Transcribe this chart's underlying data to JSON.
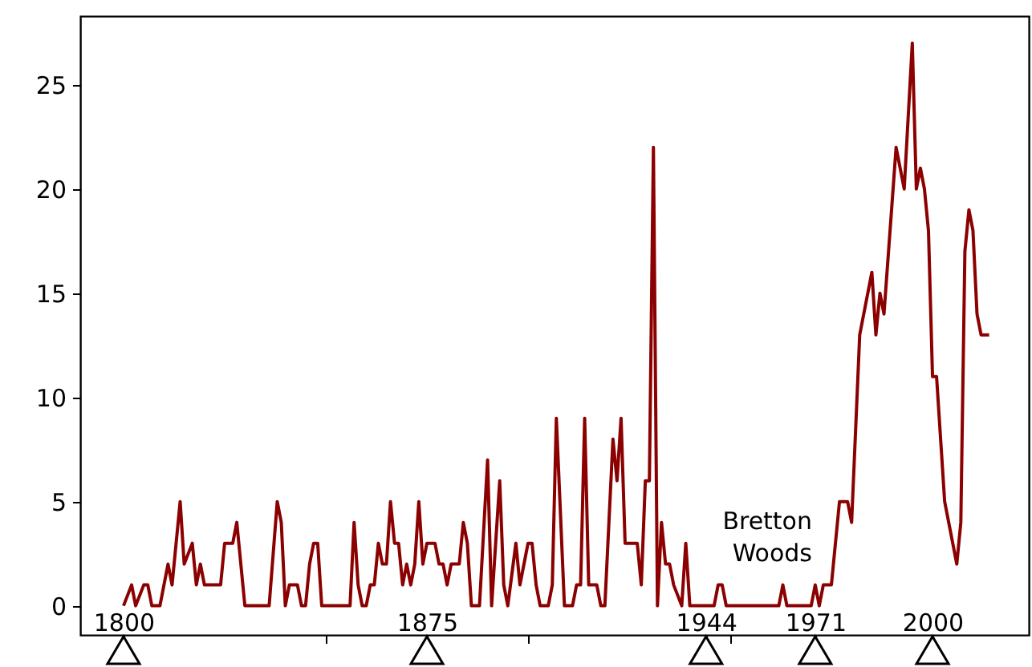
{
  "chart_data": {
    "type": "line",
    "xlim": [
      1789.3,
      2023.8
    ],
    "ylim": [
      -1.4,
      28.3
    ],
    "xticks": [
      1800,
      {
        "value": 1850,
        "label": null
      },
      1875,
      {
        "value": 1900,
        "label": null
      },
      1944,
      {
        "value": 1950,
        "label": null
      },
      1971,
      2000
    ],
    "yticks": [
      0,
      5,
      10,
      15,
      20,
      25
    ],
    "grid": false,
    "series": [
      {
        "color": "#8b0000",
        "x": [
          1800,
          1802,
          1803,
          1805,
          1806,
          1807,
          1809,
          1811,
          1812,
          1814,
          1815,
          1817,
          1818,
          1819,
          1820,
          1824,
          1825,
          1827,
          1828,
          1830,
          1836,
          1838,
          1839,
          1840,
          1841,
          1843,
          1844,
          1845,
          1846,
          1847,
          1848,
          1849,
          1856,
          1857,
          1858,
          1859,
          1860,
          1861,
          1862,
          1863,
          1864,
          1865,
          1866,
          1867,
          1868,
          1869,
          1870,
          1871,
          1872,
          1873,
          1874,
          1875,
          1877,
          1878,
          1879,
          1880,
          1881,
          1883,
          1884,
          1885,
          1886,
          1888,
          1890,
          1891,
          1893,
          1894,
          1895,
          1897,
          1898,
          1900,
          1901,
          1902,
          1903,
          1905,
          1906,
          1907,
          1909,
          1911,
          1912,
          1913,
          1914,
          1915,
          1917,
          1918,
          1919,
          1921,
          1922,
          1923,
          1924,
          1927,
          1928,
          1929,
          1930,
          1931,
          1932,
          1933,
          1934,
          1935,
          1936,
          1938,
          1939,
          1940,
          1946,
          1947,
          1948,
          1949,
          1962,
          1963,
          1964,
          1970,
          1971,
          1972,
          1973,
          1975,
          1977,
          1979,
          1980,
          1982,
          1985,
          1986,
          1987,
          1988,
          1991,
          1993,
          1995,
          1996,
          1997,
          1998,
          1999,
          2000,
          2001,
          2003,
          2006,
          2007,
          2008,
          2009,
          2010,
          2011,
          2012,
          2014
        ],
        "values": [
          0,
          1,
          0,
          1,
          1,
          0,
          0,
          2,
          1,
          5,
          2,
          3,
          1,
          2,
          1,
          1,
          3,
          3,
          4,
          0,
          0,
          5,
          4,
          0,
          1,
          1,
          0,
          0,
          2,
          3,
          3,
          0,
          0,
          4,
          1,
          0,
          0,
          1,
          1,
          3,
          2,
          2,
          5,
          3,
          3,
          1,
          2,
          1,
          2,
          5,
          2,
          3,
          3,
          2,
          2,
          1,
          2,
          2,
          4,
          3,
          0,
          0,
          7,
          0,
          6,
          1,
          0,
          3,
          1,
          3,
          3,
          1,
          0,
          0,
          1,
          9,
          0,
          0,
          1,
          1,
          9,
          1,
          1,
          0,
          0,
          8,
          6,
          9,
          3,
          3,
          1,
          6,
          6,
          22,
          0,
          4,
          2,
          2,
          1,
          0,
          3,
          0,
          0,
          1,
          1,
          0,
          0,
          1,
          0,
          0,
          1,
          0,
          1,
          1,
          5,
          5,
          4,
          13,
          16,
          13,
          15,
          14,
          22,
          20,
          27,
          20,
          21,
          20,
          18,
          11,
          11,
          5,
          2,
          4,
          17,
          19,
          18,
          14,
          13,
          13
        ]
      }
    ],
    "annotations": [
      "Bretton Woods"
    ]
  }
}
